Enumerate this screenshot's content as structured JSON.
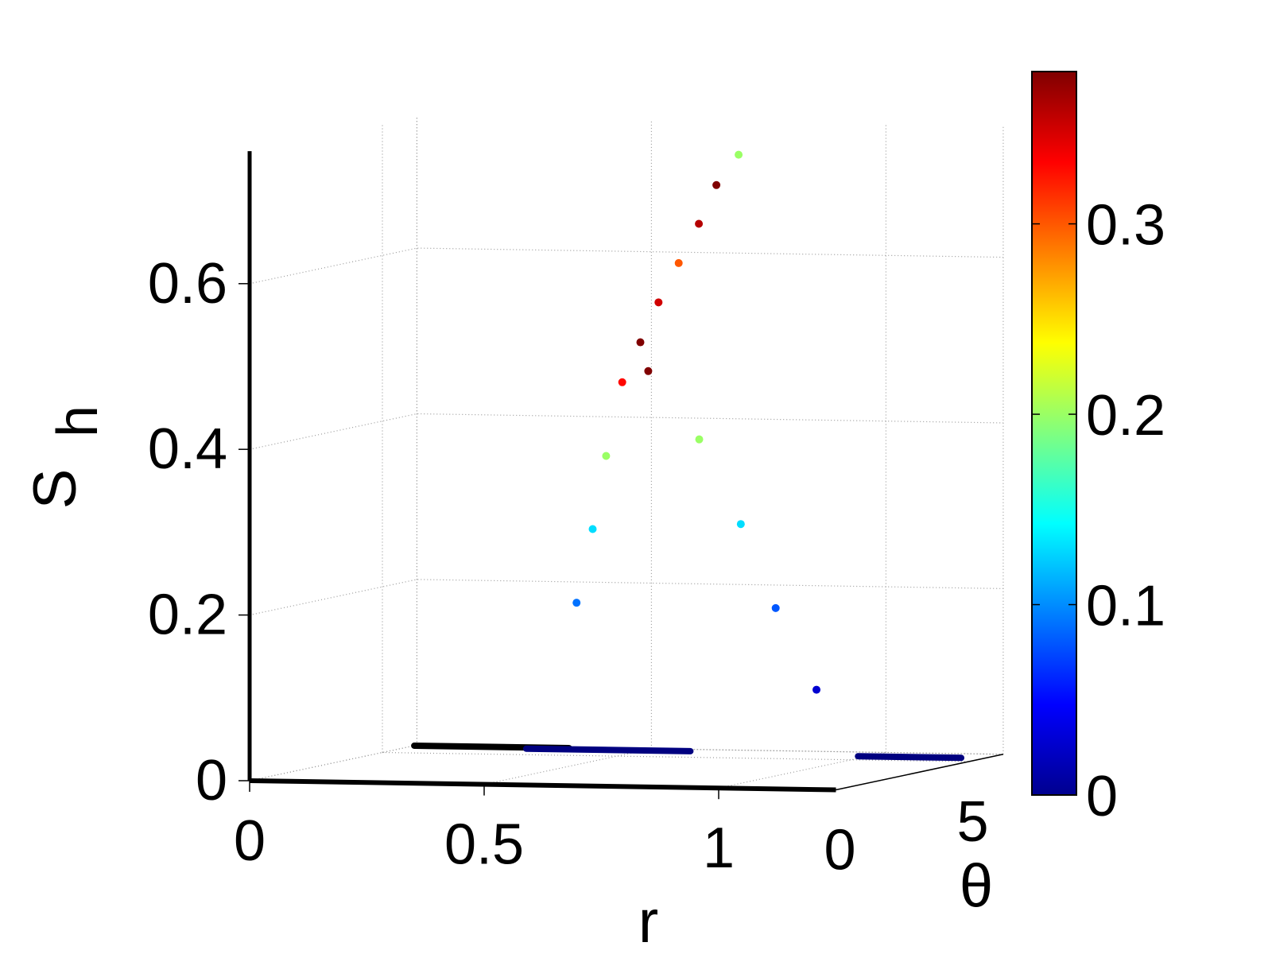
{
  "chart_data": {
    "type": "scatter",
    "projection": "3d",
    "title": "",
    "xlabel": "r",
    "ylabel": "θ",
    "zlabel_main": "S",
    "zlabel_sub": "h",
    "xlim": [
      0,
      1.25
    ],
    "ylim": [
      0,
      6.3
    ],
    "zlim": [
      0,
      0.76
    ],
    "x_ticks": [
      "0",
      "0.5",
      "1"
    ],
    "x_tick_values": [
      0,
      0.5,
      1
    ],
    "y_ticks": [
      "0",
      "5"
    ],
    "y_tick_values": [
      0,
      5
    ],
    "z_ticks": [
      "0",
      "0.2",
      "0.4",
      "0.6"
    ],
    "z_tick_values": [
      0,
      0.2,
      0.4,
      0.6
    ],
    "grid": true,
    "colormap": "jet",
    "colorbar": {
      "range": [
        0,
        0.38
      ],
      "tick_values": [
        0,
        0.1,
        0.2,
        0.3
      ],
      "tick_labels": [
        "0",
        "0.1",
        "0.2",
        "0.3"
      ]
    },
    "dense_base_lines": [
      {
        "r": [
          0.0,
          0.33
        ],
        "theta": 6.2,
        "color_value": 0.0
      },
      {
        "r": [
          0.25,
          0.6
        ],
        "theta": 6.0,
        "color_value": 0.0
      },
      {
        "r": [
          0.98,
          1.2
        ],
        "theta": 5.6,
        "color_value": 0.0
      }
    ],
    "sample_points": [
      {
        "r": 0.38,
        "theta": 5.6,
        "s": 0.18,
        "c": 0.09
      },
      {
        "r": 0.42,
        "theta": 5.5,
        "s": 0.27,
        "c": 0.13
      },
      {
        "r": 0.46,
        "theta": 5.3,
        "s": 0.36,
        "c": 0.2
      },
      {
        "r": 0.5,
        "theta": 5.2,
        "s": 0.45,
        "c": 0.33
      },
      {
        "r": 0.55,
        "theta": 5.0,
        "s": 0.5,
        "c": 0.38
      },
      {
        "r": 0.6,
        "theta": 4.8,
        "s": 0.55,
        "c": 0.35
      },
      {
        "r": 0.66,
        "theta": 4.5,
        "s": 0.6,
        "c": 0.3
      },
      {
        "r": 0.72,
        "theta": 4.2,
        "s": 0.65,
        "c": 0.36
      },
      {
        "r": 0.78,
        "theta": 3.8,
        "s": 0.7,
        "c": 0.38
      },
      {
        "r": 0.85,
        "theta": 3.4,
        "s": 0.74,
        "c": 0.2
      },
      {
        "r": 0.68,
        "theta": 3.0,
        "s": 0.48,
        "c": 0.38
      },
      {
        "r": 0.8,
        "theta": 2.8,
        "s": 0.4,
        "c": 0.2
      },
      {
        "r": 0.9,
        "theta": 2.6,
        "s": 0.3,
        "c": 0.13
      },
      {
        "r": 0.98,
        "theta": 2.5,
        "s": 0.2,
        "c": 0.08
      },
      {
        "r": 1.05,
        "theta": 2.8,
        "s": 0.1,
        "c": 0.03
      }
    ]
  }
}
